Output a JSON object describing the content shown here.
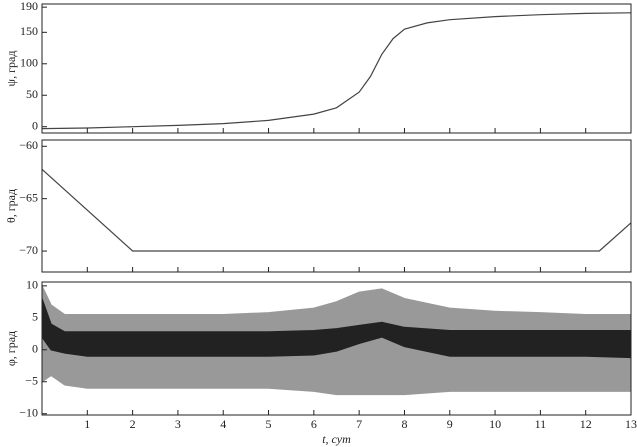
{
  "chart_data": [
    {
      "type": "line",
      "ylabel": "ψ, град",
      "x": [
        0,
        1,
        2,
        3,
        4,
        5,
        6,
        6.5,
        7,
        7.25,
        7.5,
        7.75,
        8,
        8.5,
        9,
        10,
        11,
        12,
        13
      ],
      "series": [
        {
          "color": "#444444",
          "values": [
            -3,
            -2,
            0,
            2,
            5,
            10,
            20,
            30,
            55,
            80,
            115,
            140,
            155,
            165,
            170,
            175,
            178,
            180,
            181
          ]
        }
      ],
      "xlim": [
        0,
        13
      ],
      "ylim": [
        -10,
        195
      ],
      "yticks": [
        0,
        50,
        100,
        150,
        190
      ]
    },
    {
      "type": "line",
      "ylabel": "θ, град",
      "x": [
        0,
        2,
        12.3,
        13
      ],
      "series": [
        {
          "color": "#444444",
          "values": [
            -62.2,
            -70,
            -70,
            -67.3
          ]
        }
      ],
      "xlim": [
        0,
        13
      ],
      "ylim": [
        -72,
        -59.4
      ],
      "yticks": [
        {
          "value": -60,
          "label": "−60"
        },
        {
          "value": -65,
          "label": "−65"
        },
        {
          "value": -70,
          "label": "−70"
        }
      ]
    },
    {
      "type": "band",
      "ylabel": "φ, град",
      "xlabel": "t, сут",
      "x": [
        0,
        0.2,
        0.5,
        1,
        2,
        3,
        4,
        5,
        6,
        6.5,
        7,
        7.5,
        8,
        9,
        10,
        11,
        12,
        13
      ],
      "series": [
        {
          "color": "#999999",
          "values": [
            10,
            7,
            5.5,
            5.5,
            5.5,
            5.5,
            5.5,
            5.8,
            6.5,
            7.5,
            9,
            9.5,
            8,
            6.5,
            6,
            5.8,
            5.5,
            5.5
          ]
        },
        {
          "color": "#999999",
          "values": [
            -5,
            -4,
            -5.5,
            -6,
            -6,
            -6,
            -6,
            -6,
            -6.5,
            -7,
            -7,
            -7,
            -7,
            -6.5,
            -6.5,
            -6.5,
            -6.5,
            -6.5
          ]
        },
        {
          "color": "#222222",
          "values": [
            8,
            4,
            2.8,
            2.8,
            2.8,
            2.8,
            2.8,
            2.8,
            3,
            3.3,
            3.8,
            4.3,
            3.5,
            3,
            3,
            3,
            3,
            3
          ]
        },
        {
          "color": "#222222",
          "values": [
            2,
            0,
            -0.5,
            -1,
            -1,
            -1,
            -1,
            -1,
            -0.8,
            -0.2,
            1,
            2,
            0.5,
            -1,
            -1,
            -1,
            -1,
            -1.2
          ]
        }
      ],
      "xlim": [
        0,
        13
      ],
      "ylim": [
        -10.2,
        10.6
      ],
      "xticks": [
        1,
        2,
        3,
        4,
        5,
        6,
        7,
        8,
        9,
        10,
        11,
        12,
        13
      ],
      "yticks": [
        10,
        5,
        0,
        {
          "value": -5,
          "label": "−5"
        },
        {
          "value": -10,
          "label": "−10"
        }
      ]
    }
  ]
}
